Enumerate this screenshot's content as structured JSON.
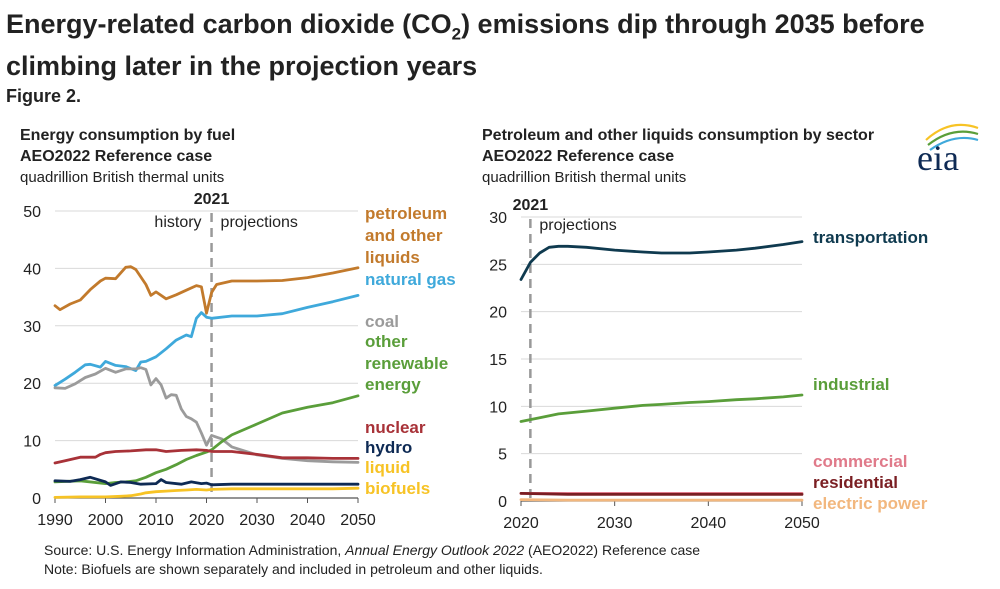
{
  "header": {
    "title_part1": "Energy-related carbon dioxide (CO",
    "title_sub": "2",
    "title_part2": ") emissions dip through 2035 before climbing later in the projection years",
    "figure_label": "Figure 2."
  },
  "logo": {
    "text": "eia"
  },
  "footer": {
    "source_prefix": "Source: U.S. Energy Information Administration, ",
    "source_italic": "Annual Energy Outlook 2022",
    "source_suffix": " (AEO2022) Reference case",
    "note": "Note: Biofuels are shown separately and included in petroleum and other liquids."
  },
  "colors": {
    "petroleum": "#C27A2C",
    "natural_gas": "#3FA9DB",
    "coal": "#9B9B9B",
    "renewable": "#5A9E3A",
    "nuclear": "#A83238",
    "hydro": "#0E2A54",
    "biofuels": "#F7C325",
    "transportation": "#0F3A4F",
    "industrial": "#5A9E3A",
    "commercial": "#E07A8A",
    "residential": "#7A1E22",
    "electric_power": "#F2B77E"
  },
  "chart_data": [
    {
      "type": "line",
      "title": "Energy consumption by fuel",
      "subtitle": "AEO2022 Reference case",
      "ylabel": "quadrillion British thermal units",
      "xlim": [
        1990,
        2050
      ],
      "ylim": [
        0,
        50
      ],
      "xticks": [
        1990,
        2000,
        2010,
        2020,
        2030,
        2040,
        2050
      ],
      "yticks": [
        0,
        10,
        20,
        30,
        40,
        50
      ],
      "grid": true,
      "divider": {
        "x": 2021,
        "label": "2021",
        "left_text": "history",
        "right_text": "projections"
      },
      "series": [
        {
          "key": "petroleum",
          "labels": [
            "petroleum",
            "and other",
            "liquids"
          ],
          "x": [
            1990,
            1991,
            1993,
            1995,
            1997,
            1999,
            2000,
            2002,
            2004,
            2005,
            2006,
            2008,
            2009,
            2010,
            2012,
            2014,
            2016,
            2018,
            2019,
            2020,
            2021,
            2022,
            2025,
            2030,
            2035,
            2040,
            2045,
            2050
          ],
          "y": [
            33.5,
            32.8,
            33.8,
            34.5,
            36.3,
            37.8,
            38.3,
            38.2,
            40.2,
            40.3,
            39.8,
            37.2,
            35.3,
            35.9,
            34.7,
            35.4,
            36.2,
            37.0,
            36.8,
            32.2,
            35.8,
            37.2,
            37.8,
            37.8,
            37.9,
            38.4,
            39.2,
            40.1
          ]
        },
        {
          "key": "natural_gas",
          "labels": [
            "natural gas"
          ],
          "x": [
            1990,
            1992,
            1994,
            1996,
            1997,
            1999,
            2000,
            2002,
            2004,
            2006,
            2007,
            2008,
            2010,
            2012,
            2014,
            2016,
            2017,
            2018,
            2019,
            2020,
            2021,
            2025,
            2030,
            2035,
            2040,
            2045,
            2050
          ],
          "y": [
            19.6,
            20.7,
            21.9,
            23.2,
            23.3,
            22.8,
            23.8,
            23.1,
            22.9,
            22.2,
            23.7,
            23.8,
            24.6,
            26.0,
            27.5,
            28.4,
            28.1,
            31.3,
            32.3,
            31.5,
            31.3,
            31.7,
            31.7,
            32.1,
            33.2,
            34.2,
            35.3
          ]
        },
        {
          "key": "coal",
          "labels": [
            "coal"
          ],
          "x": [
            1990,
            1992,
            1994,
            1996,
            1998,
            2000,
            2002,
            2004,
            2006,
            2007,
            2008,
            2009,
            2010,
            2011,
            2012,
            2013,
            2014,
            2015,
            2016,
            2017,
            2018,
            2019,
            2020,
            2021,
            2023,
            2025,
            2030,
            2035,
            2040,
            2045,
            2050
          ],
          "y": [
            19.2,
            19.1,
            19.9,
            21.0,
            21.6,
            22.6,
            21.9,
            22.5,
            22.5,
            22.7,
            22.4,
            19.7,
            20.8,
            19.7,
            17.4,
            18.0,
            17.9,
            15.5,
            14.2,
            13.8,
            13.2,
            11.3,
            9.2,
            10.9,
            10.3,
            8.9,
            7.5,
            6.9,
            6.5,
            6.3,
            6.2
          ]
        },
        {
          "key": "renewable",
          "labels": [
            "other",
            "renewable",
            "energy"
          ],
          "x": [
            1990,
            1995,
            2000,
            2002,
            2004,
            2006,
            2008,
            2010,
            2012,
            2014,
            2016,
            2018,
            2020,
            2021,
            2023,
            2025,
            2030,
            2035,
            2040,
            2045,
            2050
          ],
          "y": [
            2.8,
            3.0,
            2.5,
            2.7,
            2.8,
            3.0,
            3.6,
            4.4,
            5.0,
            5.8,
            6.7,
            7.4,
            8.0,
            8.4,
            9.8,
            11.0,
            12.9,
            14.8,
            15.8,
            16.6,
            17.8
          ]
        },
        {
          "key": "nuclear",
          "labels": [
            "nuclear"
          ],
          "x": [
            1990,
            1992,
            1995,
            1998,
            1999,
            2000,
            2002,
            2005,
            2008,
            2010,
            2012,
            2015,
            2018,
            2020,
            2021,
            2025,
            2030,
            2035,
            2040,
            2045,
            2050
          ],
          "y": [
            6.1,
            6.5,
            7.1,
            7.1,
            7.6,
            7.9,
            8.1,
            8.2,
            8.4,
            8.4,
            8.1,
            8.3,
            8.4,
            8.3,
            8.1,
            8.1,
            7.6,
            7.0,
            7.0,
            6.9,
            6.9
          ]
        },
        {
          "key": "hydro",
          "labels": [
            "hydro"
          ],
          "x": [
            1990,
            1993,
            1995,
            1997,
            2000,
            2001,
            2003,
            2005,
            2007,
            2010,
            2011,
            2012,
            2015,
            2017,
            2019,
            2020,
            2021,
            2025,
            2030,
            2035,
            2040,
            2045,
            2050
          ],
          "y": [
            3.0,
            2.9,
            3.2,
            3.6,
            2.8,
            2.2,
            2.8,
            2.7,
            2.4,
            2.5,
            3.2,
            2.7,
            2.4,
            2.8,
            2.5,
            2.6,
            2.3,
            2.4,
            2.4,
            2.4,
            2.4,
            2.4,
            2.4
          ]
        },
        {
          "key": "biofuels",
          "labels": [
            "liquid",
            "biofuels"
          ],
          "x": [
            1990,
            1995,
            2000,
            2003,
            2005,
            2007,
            2008,
            2010,
            2012,
            2014,
            2016,
            2018,
            2020,
            2021,
            2025,
            2030,
            2035,
            2040,
            2045,
            2050
          ],
          "y": [
            0.1,
            0.2,
            0.2,
            0.3,
            0.4,
            0.7,
            0.9,
            1.1,
            1.2,
            1.3,
            1.4,
            1.5,
            1.4,
            1.5,
            1.6,
            1.6,
            1.6,
            1.6,
            1.6,
            1.7
          ]
        }
      ]
    },
    {
      "type": "line",
      "title": "Petroleum and other liquids consumption by sector",
      "subtitle": "AEO2022 Reference case",
      "ylabel": "quadrillion British thermal units",
      "xlim": [
        2020,
        2050
      ],
      "ylim": [
        0,
        30
      ],
      "xticks": [
        2020,
        2030,
        2040,
        2050
      ],
      "yticks": [
        0,
        5,
        10,
        15,
        20,
        25,
        30
      ],
      "grid": true,
      "divider": {
        "x": 2021,
        "label": "2021",
        "right_text": "projections"
      },
      "series": [
        {
          "key": "transportation",
          "labels": [
            "transportation"
          ],
          "x": [
            2020,
            2021,
            2022,
            2023,
            2024,
            2025,
            2027,
            2030,
            2033,
            2035,
            2038,
            2040,
            2043,
            2045,
            2048,
            2050
          ],
          "y": [
            23.4,
            25.2,
            26.2,
            26.8,
            26.9,
            26.9,
            26.8,
            26.5,
            26.3,
            26.2,
            26.2,
            26.3,
            26.5,
            26.7,
            27.1,
            27.4
          ]
        },
        {
          "key": "industrial",
          "labels": [
            "industrial"
          ],
          "x": [
            2020,
            2022,
            2024,
            2027,
            2030,
            2033,
            2035,
            2038,
            2040,
            2043,
            2045,
            2048,
            2050
          ],
          "y": [
            8.4,
            8.8,
            9.2,
            9.5,
            9.8,
            10.1,
            10.2,
            10.4,
            10.5,
            10.7,
            10.8,
            11.0,
            11.2
          ]
        },
        {
          "key": "commercial",
          "labels": [
            "commercial"
          ],
          "x": [
            2020,
            2025,
            2030,
            2035,
            2040,
            2045,
            2050
          ],
          "y": [
            0.8,
            0.8,
            0.8,
            0.8,
            0.8,
            0.8,
            0.8
          ]
        },
        {
          "key": "residential",
          "labels": [
            "residential"
          ],
          "x": [
            2020,
            2025,
            2030,
            2035,
            2040,
            2045,
            2050
          ],
          "y": [
            0.8,
            0.7,
            0.7,
            0.7,
            0.7,
            0.7,
            0.7
          ]
        },
        {
          "key": "electric_power",
          "labels": [
            "electric power"
          ],
          "x": [
            2020,
            2025,
            2030,
            2035,
            2040,
            2045,
            2050
          ],
          "y": [
            0.15,
            0.1,
            0.1,
            0.1,
            0.1,
            0.1,
            0.1
          ]
        }
      ]
    }
  ]
}
